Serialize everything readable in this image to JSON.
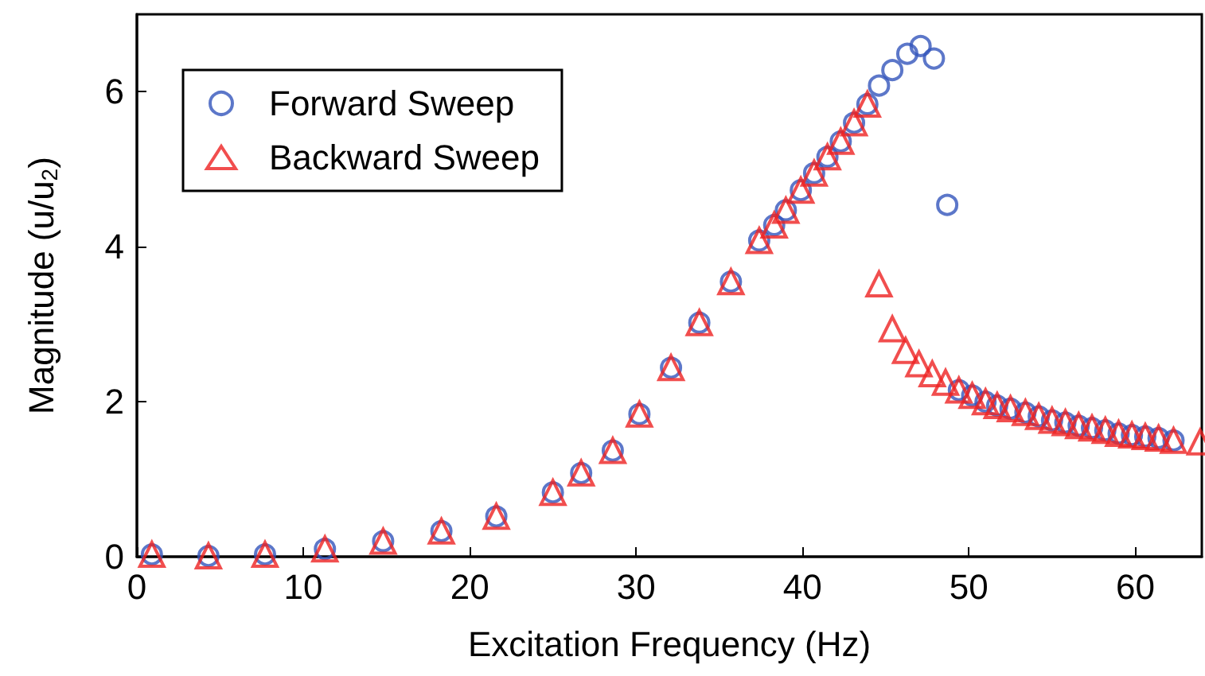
{
  "chart_data": {
    "type": "scatter",
    "xlabel": "Excitation Frequency (Hz)",
    "ylabel": "Magnitude (u/u$_{2}$)",
    "xlim": [
      0,
      64
    ],
    "xticks": [
      0,
      10,
      20,
      30,
      40,
      50,
      60
    ],
    "ylim": [
      0,
      7
    ],
    "yticks": [
      0,
      2,
      4,
      6
    ],
    "grid": false,
    "legend": "top left",
    "series": [
      {
        "name": "Forward Sweep",
        "color": "#3355bb",
        "marker": "circle",
        "x": [
          0.9,
          4.3,
          7.7,
          11.3,
          14.8,
          18.3,
          21.6,
          25.0,
          26.7,
          28.6,
          30.2,
          32.1,
          33.8,
          35.7,
          37.4,
          38.3,
          39.0,
          39.9,
          40.7,
          41.5,
          42.3,
          43.1,
          43.9,
          44.6,
          45.4,
          46.3,
          47.1,
          47.9,
          48.7,
          49.4,
          50.2,
          51.0,
          51.7,
          52.5,
          53.4,
          54.2,
          55.0,
          55.8,
          56.6,
          57.4,
          58.2,
          59.0,
          59.8,
          60.6,
          61.4,
          62.3
        ],
        "values": [
          0.03,
          0.01,
          0.03,
          0.1,
          0.2,
          0.33,
          0.52,
          0.83,
          1.08,
          1.37,
          1.84,
          2.44,
          3.02,
          3.55,
          4.08,
          4.28,
          4.47,
          4.73,
          4.95,
          5.16,
          5.36,
          5.6,
          5.84,
          6.08,
          6.28,
          6.49,
          6.59,
          6.43,
          4.54,
          2.15,
          2.08,
          2.0,
          1.95,
          1.91,
          1.86,
          1.81,
          1.76,
          1.73,
          1.69,
          1.66,
          1.63,
          1.59,
          1.57,
          1.55,
          1.53,
          1.5
        ]
      },
      {
        "name": "Backward Sweep",
        "color": "#ee2222",
        "marker": "triangle",
        "x": [
          0.9,
          4.3,
          7.7,
          11.3,
          14.8,
          18.3,
          21.6,
          25.0,
          26.7,
          28.6,
          30.2,
          32.1,
          33.8,
          35.7,
          37.4,
          38.3,
          39.0,
          39.9,
          40.7,
          41.5,
          42.3,
          43.1,
          43.9,
          44.6,
          45.4,
          46.2,
          47.0,
          47.8,
          48.6,
          49.4,
          50.2,
          51.0,
          51.7,
          52.5,
          53.4,
          54.2,
          55.0,
          55.8,
          56.6,
          57.4,
          58.2,
          59.0,
          59.8,
          60.6,
          61.4,
          62.3,
          63.9
        ],
        "values": [
          0.03,
          0.01,
          0.03,
          0.1,
          0.2,
          0.33,
          0.52,
          0.83,
          1.08,
          1.37,
          1.84,
          2.44,
          3.02,
          3.55,
          4.08,
          4.28,
          4.47,
          4.73,
          4.95,
          5.16,
          5.36,
          5.6,
          5.84,
          3.52,
          2.94,
          2.66,
          2.49,
          2.36,
          2.25,
          2.15,
          2.08,
          2.0,
          1.95,
          1.91,
          1.86,
          1.81,
          1.76,
          1.73,
          1.69,
          1.66,
          1.63,
          1.59,
          1.57,
          1.55,
          1.53,
          1.5,
          1.48
        ]
      }
    ]
  }
}
